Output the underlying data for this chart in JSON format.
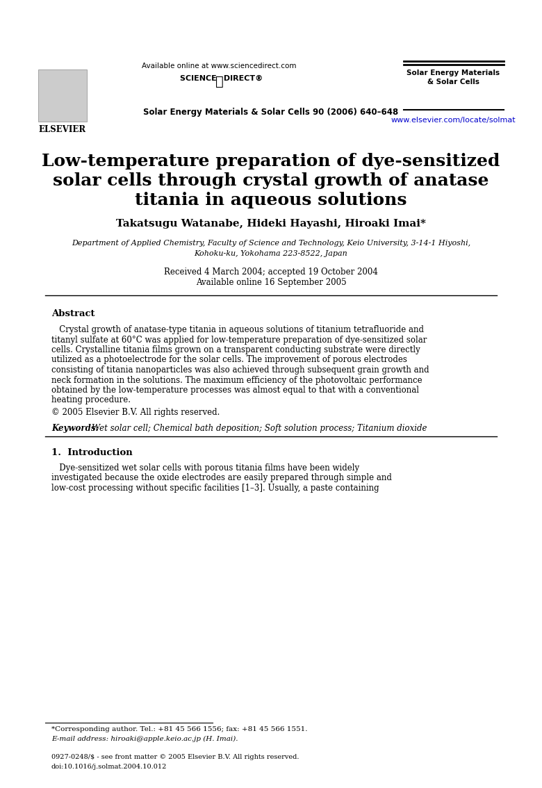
{
  "bg_color": "#ffffff",
  "header_available_online": "Available online at www.sciencedirect.com",
  "header_sciencedirect": "SCIENCE  DIRECT®",
  "header_journal_right": "Solar Energy Materials\n& Solar Cells",
  "header_journal_bottom": "Solar Energy Materials & Solar Cells 90 (2006) 640–648",
  "header_url": "www.elsevier.com/locate/solmat",
  "title_line1": "Low-temperature preparation of dye-sensitized",
  "title_line2": "solar cells through crystal growth of anatase",
  "title_line3": "titania in aqueous solutions",
  "authors": "Takatsugu Watanabe, Hideki Hayashi, Hiroaki Imai*",
  "affiliation_line1": "Department of Applied Chemistry, Faculty of Science and Technology, Keio University, 3-14-1 Hiyoshi,",
  "affiliation_line2": "Kohoku-ku, Yokohama 223-8522, Japan",
  "received": "Received 4 March 2004; accepted 19 October 2004",
  "available": "Available online 16 September 2005",
  "abstract_heading": "Abstract",
  "abstract_text": "   Crystal growth of anatase-type titania in aqueous solutions of titanium tetrafluoride and\ntitanyl sulfate at 60°C was applied for low-temperature preparation of dye-sensitized solar\ncells. Crystalline titania films grown on a transparent conducting substrate were directly\nutilized as a photoelectrode for the solar cells. The improvement of porous electrodes\nconsisting of titania nanoparticles was also achieved through subsequent grain growth and\nneck formation in the solutions. The maximum efficiency of the photovoltaic performance\nobtained by the low-temperature processes was almost equal to that with a conventional\nheating procedure.",
  "copyright": "© 2005 Elsevier B.V. All rights reserved.",
  "keywords_label": "Keywords:",
  "keywords_text": "Wet solar cell; Chemical bath deposition; Soft solution process; Titanium dioxide",
  "section_heading": "1.  Introduction",
  "intro_text": "   Dye-sensitized wet solar cells with porous titania films have been widely\ninvestigated because the oxide electrodes are easily prepared through simple and\nlow-cost processing without specific facilities [1–3]. Usually, a paste containing",
  "footnote_star": "*Corresponding author. Tel.: +81 45 566 1556; fax: +81 45 566 1551.",
  "footnote_email": "E-mail address: hiroaki@apple.keio.ac.jp (H. Imai).",
  "footer_issn": "0927-0248/$ - see front matter © 2005 Elsevier B.V. All rights reserved.",
  "footer_doi": "doi:10.1016/j.solmat.2004.10.012"
}
